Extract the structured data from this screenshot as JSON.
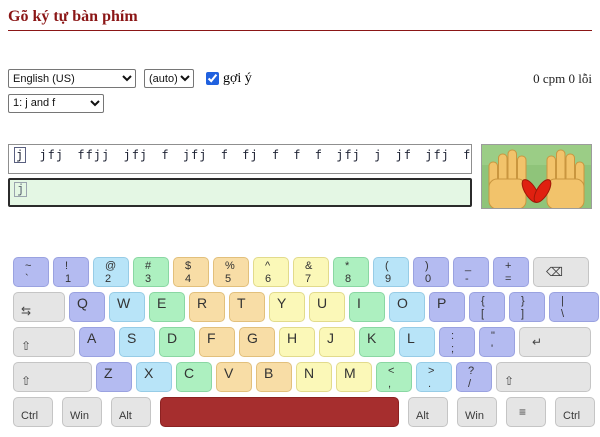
{
  "page": {
    "title": "Gõ ký tự bàn phím"
  },
  "controls": {
    "language_select": {
      "selected": "English (US)"
    },
    "mode_select": {
      "selected": "(auto)"
    },
    "hint_checkbox": {
      "label": "gợi ý",
      "checked": true
    },
    "lesson_select": {
      "selected": "1: j and f"
    },
    "stats": "0 cpm 0 lỗi"
  },
  "practice": {
    "current_char": "j",
    "rest_text": " jfj ffjj jfj f jfj f fj f f f jfj j jf jfj fj j jf f fjf fjf",
    "input_hint": "j"
  },
  "hands_image": {
    "description": "two-hands-illustration",
    "background_color": "#8fc47a",
    "hand_color": "#f2c36b",
    "highlight_color": "#e02010",
    "highlighted_parts": "thumbs"
  },
  "colors": {
    "title_red": "#8b1616",
    "space_red": "#a62e2e",
    "input_green": "#e4f7e4",
    "pinky": "#b4bbf1",
    "ring": "#b8e4f8",
    "middle": "#adf0c0",
    "index_left": "#f8dda6",
    "index_right": "#fbf8b8",
    "modifier_gray": "#e5e5e5"
  },
  "keyboard": {
    "rows": [
      [
        {
          "id": "backtick",
          "kind": "dual",
          "shift": "~",
          "main": "`",
          "color": "pinky"
        },
        {
          "id": "1",
          "kind": "dual",
          "shift": "!",
          "main": "1",
          "color": "pinky"
        },
        {
          "id": "2",
          "kind": "dual",
          "shift": "@",
          "main": "2",
          "color": "ring"
        },
        {
          "id": "3",
          "kind": "dual",
          "shift": "#",
          "main": "3",
          "color": "middle"
        },
        {
          "id": "4",
          "kind": "dual",
          "shift": "$",
          "main": "4",
          "color": "index-l"
        },
        {
          "id": "5",
          "kind": "dual",
          "shift": "%",
          "main": "5",
          "color": "index-l"
        },
        {
          "id": "6",
          "kind": "dual",
          "shift": "^",
          "main": "6",
          "color": "index-r"
        },
        {
          "id": "7",
          "kind": "dual",
          "shift": "&",
          "main": "7",
          "color": "index-r"
        },
        {
          "id": "8",
          "kind": "dual",
          "shift": "*",
          "main": "8",
          "color": "middle"
        },
        {
          "id": "9",
          "kind": "dual",
          "shift": "(",
          "main": "9",
          "color": "ring"
        },
        {
          "id": "0",
          "kind": "dual",
          "shift": ")",
          "main": "0",
          "color": "pinky"
        },
        {
          "id": "minus",
          "kind": "dual",
          "shift": "_",
          "main": "-",
          "color": "pinky"
        },
        {
          "id": "equals",
          "kind": "dual",
          "shift": "+",
          "main": "=",
          "color": "pinky"
        },
        {
          "id": "backspace",
          "kind": "glyph-cl",
          "glyph": "⌫",
          "color": "mod",
          "size": "backspace"
        }
      ],
      [
        {
          "id": "tab",
          "kind": "glyph-bl",
          "glyph": "⇆",
          "color": "mod",
          "size": "tab"
        },
        {
          "id": "q",
          "kind": "letter",
          "main": "Q",
          "color": "pinky"
        },
        {
          "id": "w",
          "kind": "letter",
          "main": "W",
          "color": "ring"
        },
        {
          "id": "e",
          "kind": "letter",
          "main": "E",
          "color": "middle"
        },
        {
          "id": "r",
          "kind": "letter",
          "main": "R",
          "color": "index-l"
        },
        {
          "id": "t",
          "kind": "letter",
          "main": "T",
          "color": "index-l"
        },
        {
          "id": "y",
          "kind": "letter",
          "main": "Y",
          "color": "index-r"
        },
        {
          "id": "u",
          "kind": "letter",
          "main": "U",
          "color": "index-r"
        },
        {
          "id": "i",
          "kind": "letter",
          "main": "I",
          "color": "middle"
        },
        {
          "id": "o",
          "kind": "letter",
          "main": "O",
          "color": "ring"
        },
        {
          "id": "p",
          "kind": "letter",
          "main": "P",
          "color": "pinky"
        },
        {
          "id": "bracket-open",
          "kind": "dual",
          "shift": "{",
          "main": "[",
          "color": "pinky"
        },
        {
          "id": "bracket-close",
          "kind": "dual",
          "shift": "}",
          "main": "]",
          "color": "pinky"
        },
        {
          "id": "backslash",
          "kind": "dual",
          "shift": "|",
          "main": "\\",
          "color": "pinky",
          "size": "backslash"
        }
      ],
      [
        {
          "id": "capslock",
          "kind": "glyph-bl",
          "glyph": "⇧",
          "color": "mod",
          "size": "caps"
        },
        {
          "id": "a",
          "kind": "letter",
          "main": "A",
          "color": "pinky"
        },
        {
          "id": "s",
          "kind": "letter",
          "main": "S",
          "color": "ring"
        },
        {
          "id": "d",
          "kind": "letter",
          "main": "D",
          "color": "middle"
        },
        {
          "id": "f",
          "kind": "letter",
          "main": "F",
          "color": "index-l"
        },
        {
          "id": "g",
          "kind": "letter",
          "main": "G",
          "color": "index-l"
        },
        {
          "id": "h",
          "kind": "letter",
          "main": "H",
          "color": "index-r"
        },
        {
          "id": "j",
          "kind": "letter",
          "main": "J",
          "color": "index-r"
        },
        {
          "id": "k",
          "kind": "letter",
          "main": "K",
          "color": "middle"
        },
        {
          "id": "l",
          "kind": "letter",
          "main": "L",
          "color": "ring"
        },
        {
          "id": "semicolon",
          "kind": "dual",
          "shift": ":",
          "main": ";",
          "color": "pinky"
        },
        {
          "id": "quote",
          "kind": "dual",
          "shift": "\"",
          "main": "'",
          "color": "pinky"
        },
        {
          "id": "enter",
          "kind": "glyph-cl",
          "glyph": "↵",
          "color": "mod",
          "size": "enter"
        }
      ],
      [
        {
          "id": "shift-left",
          "kind": "glyph-bl",
          "glyph": "⇧",
          "color": "mod",
          "size": "lshift"
        },
        {
          "id": "z",
          "kind": "letter",
          "main": "Z",
          "color": "pinky"
        },
        {
          "id": "x",
          "kind": "letter",
          "main": "X",
          "color": "ring"
        },
        {
          "id": "c",
          "kind": "letter",
          "main": "C",
          "color": "middle"
        },
        {
          "id": "v",
          "kind": "letter",
          "main": "V",
          "color": "index-l"
        },
        {
          "id": "b",
          "kind": "letter",
          "main": "B",
          "color": "index-l"
        },
        {
          "id": "n",
          "kind": "letter",
          "main": "N",
          "color": "index-r"
        },
        {
          "id": "m",
          "kind": "letter",
          "main": "M",
          "color": "index-r"
        },
        {
          "id": "comma",
          "kind": "dual",
          "shift": "<",
          "main": ",",
          "color": "middle"
        },
        {
          "id": "period",
          "kind": "dual",
          "shift": ">",
          "main": ".",
          "color": "ring"
        },
        {
          "id": "slash",
          "kind": "dual",
          "shift": "?",
          "main": "/",
          "color": "pinky"
        },
        {
          "id": "shift-right",
          "kind": "glyph-bl",
          "glyph": "⇧",
          "color": "mod",
          "size": "rshift"
        }
      ],
      [
        {
          "id": "ctrl-left",
          "kind": "mod",
          "main": "Ctrl",
          "color": "mod",
          "size": "mod5"
        },
        {
          "id": "win-left",
          "kind": "mod",
          "main": "Win",
          "color": "mod",
          "size": "mod5"
        },
        {
          "id": "alt-left",
          "kind": "mod",
          "main": "Alt",
          "color": "mod",
          "size": "mod5"
        },
        {
          "id": "space",
          "kind": "blank",
          "color": "space",
          "size": "space"
        },
        {
          "id": "alt-right",
          "kind": "mod",
          "main": "Alt",
          "color": "mod",
          "size": "mod5"
        },
        {
          "id": "win-right",
          "kind": "mod",
          "main": "Win",
          "color": "mod",
          "size": "mod5"
        },
        {
          "id": "menu",
          "kind": "glyph-cl",
          "glyph": "≡",
          "color": "mod",
          "size": "mod5"
        },
        {
          "id": "ctrl-right",
          "kind": "mod",
          "main": "Ctrl",
          "color": "mod",
          "size": "mod5"
        }
      ]
    ]
  }
}
